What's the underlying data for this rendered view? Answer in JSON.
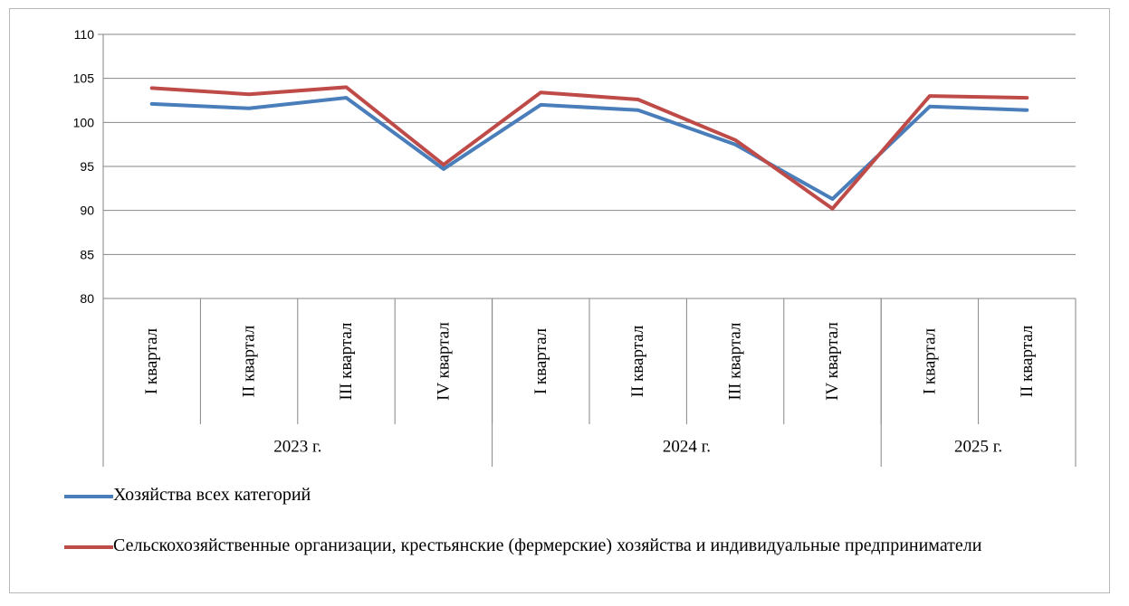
{
  "chart_data": {
    "type": "line",
    "title": "",
    "xlabel": "",
    "ylabel": "",
    "ylim": [
      80,
      110
    ],
    "yticks": [
      80,
      85,
      90,
      95,
      100,
      105,
      110
    ],
    "grid": true,
    "categories": [
      "I квартал",
      "II квартал",
      "III квартал",
      "IV квартал",
      "I квартал",
      "II квартал",
      "III квартал",
      "IV квартал",
      "I квартал",
      "II квартал"
    ],
    "groups": [
      {
        "label": "2023 г.",
        "count": 4
      },
      {
        "label": "2024 г.",
        "count": 4
      },
      {
        "label": "2025 г.",
        "count": 2
      }
    ],
    "series": [
      {
        "name": "Хозяйства всех категорий",
        "color": "#4a7ebb",
        "values": [
          102.1,
          101.6,
          102.8,
          94.7,
          102.0,
          101.4,
          97.5,
          91.3,
          101.8,
          101.4
        ]
      },
      {
        "name": "Сельскохозяйственные организации, крестьянские (фермерские) хозяйства и индивидуальные предприниматели",
        "color": "#be4b48",
        "values": [
          103.9,
          103.2,
          104.0,
          95.2,
          103.4,
          102.6,
          98.0,
          90.2,
          103.0,
          102.8
        ]
      }
    ],
    "legend_position": "bottom"
  }
}
